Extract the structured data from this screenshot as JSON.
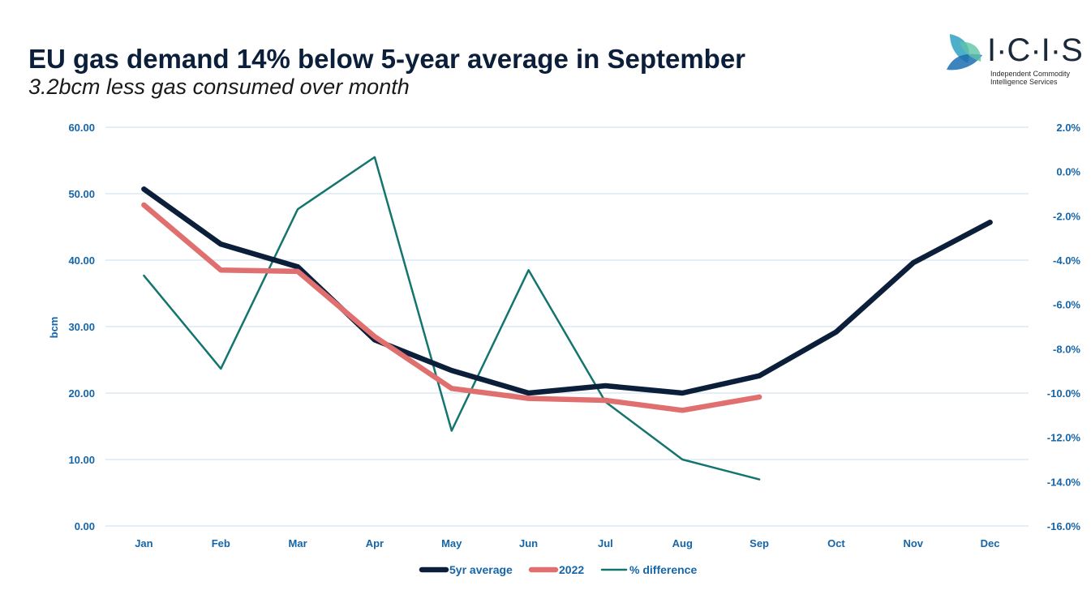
{
  "header": {
    "title": "EU gas demand 14% below 5-year average in September",
    "subtitle": "3.2bcm less gas consumed over month"
  },
  "logo": {
    "wordmark": "I·C·I·S",
    "tagline_1": "Independent Commodity",
    "tagline_2": "Intelligence Services"
  },
  "colors": {
    "avg": "#0b1f3a",
    "y2022": "#e07070",
    "diff": "#14756e",
    "grid": "#c9dcea",
    "axis_text": "#1565a8"
  },
  "chart_data": {
    "type": "line",
    "title": "EU gas demand 14% below 5-year average in September",
    "subtitle": "3.2bcm less gas consumed over month",
    "categories": [
      "Jan",
      "Feb",
      "Mar",
      "Apr",
      "May",
      "Jun",
      "Jul",
      "Aug",
      "Sep",
      "Oct",
      "Nov",
      "Dec"
    ],
    "ylabel": "bcm",
    "ylim": [
      0,
      60
    ],
    "yticks": [
      "0.00",
      "10.00",
      "20.00",
      "30.00",
      "40.00",
      "50.00",
      "60.00"
    ],
    "y2lim": [
      -16,
      2
    ],
    "y2ticks": [
      "-16.0%",
      "-14.0%",
      "-12.0%",
      "-10.0%",
      "-8.0%",
      "-6.0%",
      "-4.0%",
      "-2.0%",
      "0.0%",
      "2.0%"
    ],
    "series": [
      {
        "name": "5yr average",
        "axis": "left",
        "values": [
          50.7,
          42.4,
          39.0,
          28.0,
          23.4,
          20.0,
          21.1,
          20.0,
          22.6,
          29.2,
          39.6,
          45.7
        ]
      },
      {
        "name": "2022",
        "axis": "left",
        "values": [
          48.3,
          38.5,
          38.3,
          28.5,
          20.7,
          19.2,
          18.9,
          17.4,
          19.4,
          null,
          null,
          null
        ]
      },
      {
        "name": "% difference",
        "axis": "right",
        "values": [
          -4.7,
          -8.9,
          -1.7,
          0.65,
          -11.7,
          -4.45,
          -10.4,
          -13.0,
          -13.9,
          null,
          null,
          null
        ]
      }
    ],
    "legend": [
      "5yr average",
      "2022",
      "% difference"
    ],
    "legend_position": "bottom",
    "grid": true
  }
}
